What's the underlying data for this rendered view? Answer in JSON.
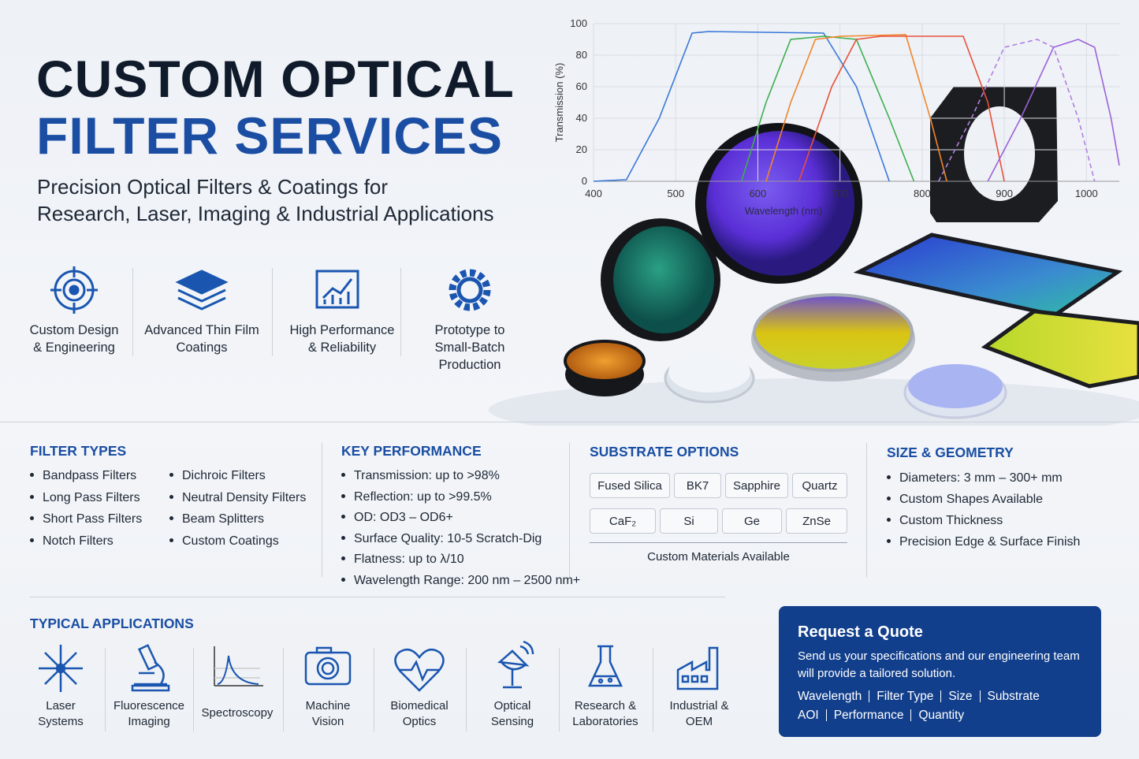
{
  "header": {
    "title_line1": "CUSTOM OPTICAL",
    "title_line2": "FILTER SERVICES",
    "subtitle_lines": [
      "Precision Optical Filters & Coatings for",
      "Research, Laser, Imaging & Industrial Applications"
    ]
  },
  "features": [
    {
      "lines": [
        "Custom Design",
        "& Engineering"
      ]
    },
    {
      "lines": [
        "Advanced Thin Film",
        "Coatings"
      ]
    },
    {
      "lines": [
        "High Performance",
        "& Reliability"
      ]
    },
    {
      "lines": [
        "Prototype to",
        "Small-Batch Production"
      ]
    }
  ],
  "chart_data": {
    "type": "line",
    "ylabel": "Transmission (%)",
    "xlabel": "Wavelength (nm)",
    "xlim": [
      400,
      1040
    ],
    "ylim": [
      0,
      100
    ],
    "xticks": [
      400,
      500,
      600,
      700,
      800,
      900,
      1000
    ],
    "yticks": [
      0,
      20,
      40,
      60,
      80,
      100
    ],
    "grid": true,
    "series": [
      {
        "color": "#3a78d8",
        "dashed": false,
        "x": [
          400,
          440,
          480,
          520,
          540,
          680,
          720,
          760
        ],
        "values": [
          0,
          1,
          40,
          94,
          95,
          94,
          60,
          0
        ]
      },
      {
        "color": "#3fae4f",
        "dashed": false,
        "x": [
          580,
          610,
          640,
          680,
          720,
          760,
          790
        ],
        "values": [
          0,
          50,
          90,
          92,
          90,
          40,
          0
        ]
      },
      {
        "color": "#f0862a",
        "dashed": false,
        "x": [
          610,
          640,
          670,
          700,
          780,
          810,
          830
        ],
        "values": [
          0,
          50,
          90,
          92,
          93,
          40,
          0
        ]
      },
      {
        "color": "#e8503a",
        "dashed": false,
        "x": [
          650,
          690,
          720,
          750,
          850,
          880,
          900
        ],
        "values": [
          0,
          60,
          90,
          92,
          92,
          50,
          0
        ]
      },
      {
        "color": "#b07fe0",
        "dashed": true,
        "x": [
          820,
          860,
          900,
          940,
          960,
          990,
          1010
        ],
        "values": [
          0,
          40,
          85,
          90,
          85,
          40,
          0
        ]
      },
      {
        "color": "#9b62d8",
        "dashed": false,
        "x": [
          880,
          920,
          960,
          990,
          1010,
          1030,
          1040
        ],
        "values": [
          0,
          40,
          85,
          90,
          85,
          40,
          10
        ]
      }
    ]
  },
  "filter_types": {
    "title": "FILTER TYPES",
    "col1": [
      "Bandpass Filters",
      "Long Pass Filters",
      "Short Pass Filters",
      "Notch Filters"
    ],
    "col2": [
      "Dichroic Filters",
      "Neutral Density Filters",
      "Beam Splitters",
      "Custom Coatings"
    ]
  },
  "key_performance": {
    "title": "KEY PERFORMANCE",
    "items": [
      "Transmission: up to >98%",
      "Reflection: up to >99.5%",
      "OD: OD3 – OD6+",
      "Surface Quality: 10-5 Scratch-Dig",
      "Flatness: up to λ/10",
      "Wavelength Range: 200 nm – 2500 nm+"
    ]
  },
  "substrate_options": {
    "title": "SUBSTRATE OPTIONS",
    "row1": [
      "Fused Silica",
      "BK7",
      "Sapphire",
      "Quartz"
    ],
    "row2": [
      "CaF₂",
      "Si",
      "Ge",
      "ZnSe"
    ],
    "note": "Custom Materials Available"
  },
  "size_geometry": {
    "title": "SIZE & GEOMETRY",
    "items": [
      "Diameters: 3 mm – 300+ mm",
      "Custom Shapes Available",
      "Custom Thickness",
      "Precision Edge & Surface Finish"
    ]
  },
  "applications": {
    "title": "TYPICAL APPLICATIONS",
    "items": [
      {
        "lines": [
          "Laser",
          "Systems"
        ]
      },
      {
        "lines": [
          "Fluorescence",
          "Imaging"
        ]
      },
      {
        "lines": [
          "Spectroscopy"
        ]
      },
      {
        "lines": [
          "Machine",
          "Vision"
        ]
      },
      {
        "lines": [
          "Biomedical",
          "Optics"
        ]
      },
      {
        "lines": [
          "Optical",
          "Sensing"
        ]
      },
      {
        "lines": [
          "Research &",
          "Laboratories"
        ]
      },
      {
        "lines": [
          "Industrial &",
          "OEM"
        ]
      }
    ]
  },
  "quote": {
    "title": "Request a Quote",
    "text": "Send us your specifications and our engineering team will provide a tailored solution.",
    "fields_row1": [
      "Wavelength",
      "Filter Type",
      "Size",
      "Substrate"
    ],
    "fields_row2": [
      "AOI",
      "Performance",
      "Quantity"
    ]
  }
}
